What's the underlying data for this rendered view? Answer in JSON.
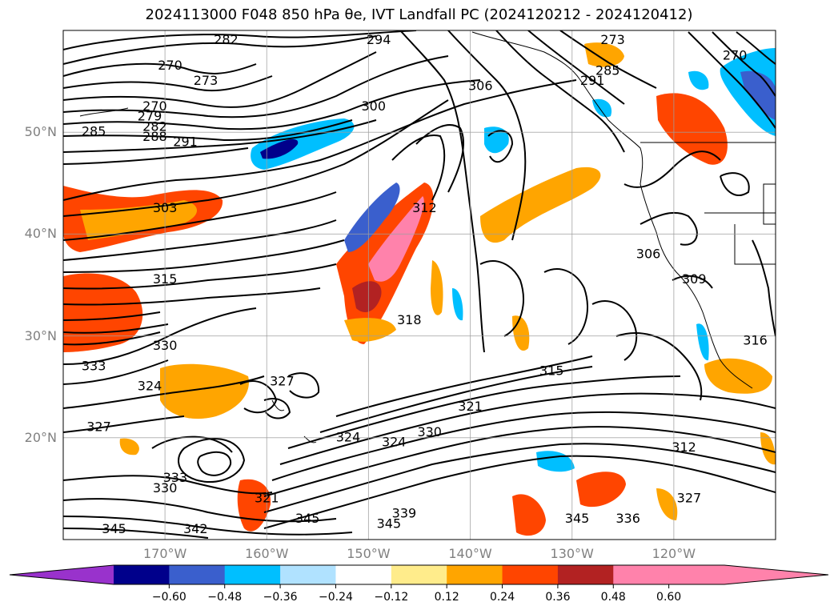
{
  "title": "2024113000 F048 850 hPa θe, IVT Landfall PC (2024120212 - 2024120412)",
  "map": {
    "lat_ticks": [
      {
        "label": "50°N",
        "lat": 50
      },
      {
        "label": "40°N",
        "lat": 40
      },
      {
        "label": "30°N",
        "lat": 30
      },
      {
        "label": "20°N",
        "lat": 20
      }
    ],
    "lon_ticks": [
      {
        "label": "170°W",
        "lon": -170
      },
      {
        "label": "160°W",
        "lon": -160
      },
      {
        "label": "150°W",
        "lon": -150
      },
      {
        "label": "140°W",
        "lon": -140
      },
      {
        "label": "130°W",
        "lon": -130
      },
      {
        "label": "120°W",
        "lon": -120
      }
    ],
    "extent": {
      "lon_min": -180,
      "lon_max": -110,
      "lat_min": 10,
      "lat_max": 60
    },
    "contour_labels": [
      {
        "text": "294",
        "lon": -149,
        "lat": 59
      },
      {
        "text": "282",
        "lon": -164,
        "lat": 59
      },
      {
        "text": "270",
        "lon": -169.5,
        "lat": 56.5
      },
      {
        "text": "273",
        "lon": -166,
        "lat": 55
      },
      {
        "text": "270",
        "lon": -171,
        "lat": 52.5
      },
      {
        "text": "279",
        "lon": -171.5,
        "lat": 51.5
      },
      {
        "text": "282",
        "lon": -171,
        "lat": 50.5
      },
      {
        "text": "288",
        "lon": -171,
        "lat": 49.5
      },
      {
        "text": "291",
        "lon": -168,
        "lat": 49
      },
      {
        "text": "285",
        "lon": -177,
        "lat": 50
      },
      {
        "text": "300",
        "lon": -149.5,
        "lat": 52.5
      },
      {
        "text": "306",
        "lon": -139,
        "lat": 54.5
      },
      {
        "text": "270",
        "lon": -114,
        "lat": 57.5
      },
      {
        "text": "273",
        "lon": -126,
        "lat": 59
      },
      {
        "text": "285",
        "lon": -126.5,
        "lat": 56
      },
      {
        "text": "291",
        "lon": -128,
        "lat": 55
      },
      {
        "text": "303",
        "lon": -170,
        "lat": 42.5
      },
      {
        "text": "312",
        "lon": -144.5,
        "lat": 42.5
      },
      {
        "text": "306",
        "lon": -122.5,
        "lat": 38
      },
      {
        "text": "309",
        "lon": -118,
        "lat": 35.5
      },
      {
        "text": "315",
        "lon": -170,
        "lat": 35.5
      },
      {
        "text": "318",
        "lon": -146,
        "lat": 31.5
      },
      {
        "text": "330",
        "lon": -170,
        "lat": 29
      },
      {
        "text": "333",
        "lon": -177,
        "lat": 27
      },
      {
        "text": "324",
        "lon": -171.5,
        "lat": 25
      },
      {
        "text": "327",
        "lon": -158.5,
        "lat": 25.5
      },
      {
        "text": "315",
        "lon": -132,
        "lat": 26.5
      },
      {
        "text": "321",
        "lon": -140,
        "lat": 23
      },
      {
        "text": "316",
        "lon": -112,
        "lat": 29.5
      },
      {
        "text": "327",
        "lon": -176.5,
        "lat": 21
      },
      {
        "text": "324",
        "lon": -152,
        "lat": 20
      },
      {
        "text": "324",
        "lon": -147.5,
        "lat": 19.5
      },
      {
        "text": "330",
        "lon": -144,
        "lat": 20.5
      },
      {
        "text": "312",
        "lon": -119,
        "lat": 19
      },
      {
        "text": "333",
        "lon": -169,
        "lat": 16
      },
      {
        "text": "330",
        "lon": -170,
        "lat": 15
      },
      {
        "text": "321",
        "lon": -160,
        "lat": 14
      },
      {
        "text": "339",
        "lon": -146.5,
        "lat": 12.5
      },
      {
        "text": "336",
        "lon": -124.5,
        "lat": 12
      },
      {
        "text": "327",
        "lon": -118.5,
        "lat": 14
      },
      {
        "text": "345",
        "lon": -175,
        "lat": 11
      },
      {
        "text": "342",
        "lon": -167,
        "lat": 11
      },
      {
        "text": "345",
        "lon": -156,
        "lat": 12
      },
      {
        "text": "345",
        "lon": -148,
        "lat": 11.5
      },
      {
        "text": "345",
        "lon": -129.5,
        "lat": 12
      }
    ]
  },
  "colorbar": {
    "ticks": [
      "−0.60",
      "−0.48",
      "−0.36",
      "−0.24",
      "−0.12",
      "0.12",
      "0.24",
      "0.36",
      "0.48",
      "0.60"
    ],
    "colors": [
      "#9932cc",
      "#00008b",
      "#3a5fcd",
      "#00bfff",
      "#b0e2ff",
      "#ffffff",
      "#ffec8b",
      "#ffa500",
      "#ff4500",
      "#b22222",
      "#ff82ab",
      "#ff82ab"
    ],
    "extend": "both"
  }
}
